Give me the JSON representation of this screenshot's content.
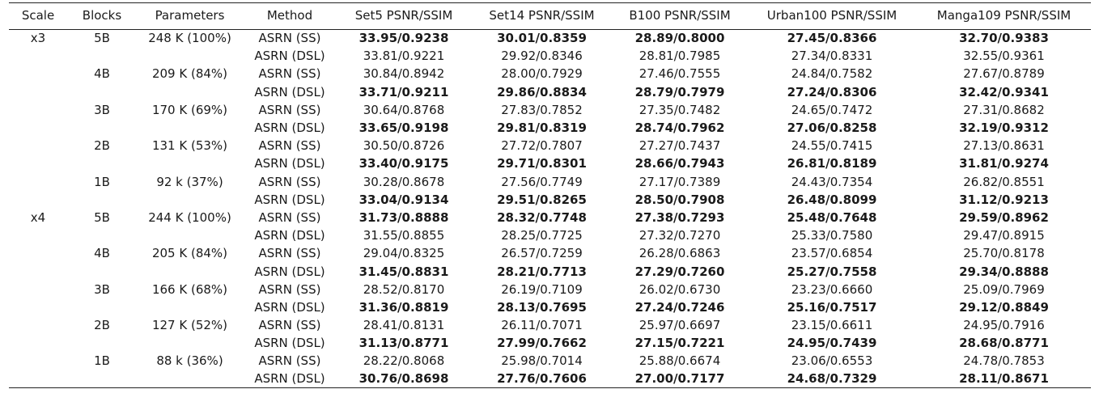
{
  "headers": [
    "Scale",
    "Blocks",
    "Parameters",
    "Method",
    "Set5 PSNR/SSIM",
    "Set14 PSNR/SSIM",
    "B100 PSNR/SSIM",
    "Urban100 PSNR/SSIM",
    "Manga109 PSNR/SSIM"
  ],
  "rows": [
    {
      "scale": "x3",
      "blocks": "5B",
      "params": "248 K (100%)",
      "method": "ASRN (SS)",
      "bold": true,
      "vals": [
        "33.95/0.9238",
        "30.01/0.8359",
        "28.89/0.8000",
        "27.45/0.8366",
        "32.70/0.9383"
      ]
    },
    {
      "scale": "",
      "blocks": "",
      "params": "",
      "method": "ASRN (DSL)",
      "bold": false,
      "vals": [
        "33.81/0.9221",
        "29.92/0.8346",
        "28.81/0.7985",
        "27.34/0.8331",
        "32.55/0.9361"
      ]
    },
    {
      "scale": "",
      "blocks": "4B",
      "params": "209 K (84%)",
      "method": "ASRN (SS)",
      "bold": false,
      "vals": [
        "30.84/0.8942",
        "28.00/0.7929",
        "27.46/0.7555",
        "24.84/0.7582",
        "27.67/0.8789"
      ]
    },
    {
      "scale": "",
      "blocks": "",
      "params": "",
      "method": "ASRN (DSL)",
      "bold": true,
      "vals": [
        "33.71/0.9211",
        "29.86/0.8834",
        "28.79/0.7979",
        "27.24/0.8306",
        "32.42/0.9341"
      ]
    },
    {
      "scale": "",
      "blocks": "3B",
      "params": "170 K (69%)",
      "method": "ASRN (SS)",
      "bold": false,
      "vals": [
        "30.64/0.8768",
        "27.83/0.7852",
        "27.35/0.7482",
        "24.65/0.7472",
        "27.31/0.8682"
      ]
    },
    {
      "scale": "",
      "blocks": "",
      "params": "",
      "method": "ASRN (DSL)",
      "bold": true,
      "vals": [
        "33.65/0.9198",
        "29.81/0.8319",
        "28.74/0.7962",
        "27.06/0.8258",
        "32.19/0.9312"
      ]
    },
    {
      "scale": "",
      "blocks": "2B",
      "params": "131 K (53%)",
      "method": "ASRN (SS)",
      "bold": false,
      "vals": [
        "30.50/0.8726",
        "27.72/0.7807",
        "27.27/0.7437",
        "24.55/0.7415",
        "27.13/0.8631"
      ]
    },
    {
      "scale": "",
      "blocks": "",
      "params": "",
      "method": "ASRN (DSL)",
      "bold": true,
      "vals": [
        "33.40/0.9175",
        "29.71/0.8301",
        "28.66/0.7943",
        "26.81/0.8189",
        "31.81/0.9274"
      ]
    },
    {
      "scale": "",
      "blocks": "1B",
      "params": "92 k (37%)",
      "method": "ASRN (SS)",
      "bold": false,
      "vals": [
        "30.28/0.8678",
        "27.56/0.7749",
        "27.17/0.7389",
        "24.43/0.7354",
        "26.82/0.8551"
      ]
    },
    {
      "scale": "",
      "blocks": "",
      "params": "",
      "method": "ASRN (DSL)",
      "bold": true,
      "vals": [
        "33.04/0.9134",
        "29.51/0.8265",
        "28.50/0.7908",
        "26.48/0.8099",
        "31.12/0.9213"
      ]
    },
    {
      "scale": "x4",
      "blocks": "5B",
      "params": "244 K (100%)",
      "method": "ASRN (SS)",
      "bold": true,
      "vals": [
        "31.73/0.8888",
        "28.32/0.7748",
        "27.38/0.7293",
        "25.48/0.7648",
        "29.59/0.8962"
      ]
    },
    {
      "scale": "",
      "blocks": "",
      "params": "",
      "method": "ASRN (DSL)",
      "bold": false,
      "vals": [
        "31.55/0.8855",
        "28.25/0.7725",
        "27.32/0.7270",
        "25.33/0.7580",
        "29.47/0.8915"
      ]
    },
    {
      "scale": "",
      "blocks": "4B",
      "params": "205 K (84%)",
      "method": "ASRN (SS)",
      "bold": false,
      "vals": [
        "29.04/0.8325",
        "26.57/0.7259",
        "26.28/0.6863",
        "23.57/0.6854",
        "25.70/0.8178"
      ]
    },
    {
      "scale": "",
      "blocks": "",
      "params": "",
      "method": "ASRN (DSL)",
      "bold": true,
      "vals": [
        "31.45/0.8831",
        "28.21/0.7713",
        "27.29/0.7260",
        "25.27/0.7558",
        "29.34/0.8888"
      ]
    },
    {
      "scale": "",
      "blocks": "3B",
      "params": "166 K (68%)",
      "method": "ASRN (SS)",
      "bold": false,
      "vals": [
        "28.52/0.8170",
        "26.19/0.7109",
        "26.02/0.6730",
        "23.23/0.6660",
        "25.09/0.7969"
      ]
    },
    {
      "scale": "",
      "blocks": "",
      "params": "",
      "method": "ASRN (DSL)",
      "bold": true,
      "vals": [
        "31.36/0.8819",
        "28.13/0.7695",
        "27.24/0.7246",
        "25.16/0.7517",
        "29.12/0.8849"
      ]
    },
    {
      "scale": "",
      "blocks": "2B",
      "params": "127 K (52%)",
      "method": "ASRN (SS)",
      "bold": false,
      "vals": [
        "28.41/0.8131",
        "26.11/0.7071",
        "25.97/0.6697",
        "23.15/0.6611",
        "24.95/0.7916"
      ]
    },
    {
      "scale": "",
      "blocks": "",
      "params": "",
      "method": "ASRN (DSL)",
      "bold": true,
      "vals": [
        "31.13/0.8771",
        "27.99/0.7662",
        "27.15/0.7221",
        "24.95/0.7439",
        "28.68/0.8771"
      ]
    },
    {
      "scale": "",
      "blocks": "1B",
      "params": "88 k (36%)",
      "method": "ASRN (SS)",
      "bold": false,
      "vals": [
        "28.22/0.8068",
        "25.98/0.7014",
        "25.88/0.6674",
        "23.06/0.6553",
        "24.78/0.7853"
      ]
    },
    {
      "scale": "",
      "blocks": "",
      "params": "",
      "method": "ASRN (DSL)",
      "bold": true,
      "vals": [
        "30.76/0.8698",
        "27.76/0.7606",
        "27.00/0.7177",
        "24.68/0.7329",
        "28.11/0.8671"
      ]
    }
  ]
}
